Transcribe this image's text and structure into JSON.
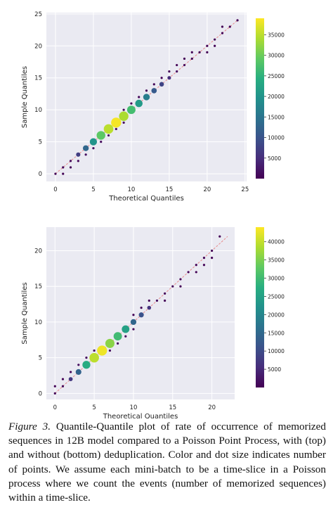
{
  "figures": [
    {
      "chart_data": {
        "type": "scatter",
        "title": "",
        "xlabel": "Theoretical Quantiles",
        "ylabel": "Sample Quantiles",
        "xlim": [
          -1.2,
          25.2
        ],
        "ylim": [
          -1.2,
          25.2
        ],
        "xticks": [
          "0",
          "5",
          "10",
          "15",
          "20",
          "25"
        ],
        "yticks": [
          "0",
          "5",
          "10",
          "15",
          "20",
          "25"
        ],
        "grid": true,
        "reference_line": {
          "from": [
            0,
            0
          ],
          "to": [
            24,
            24
          ],
          "color": "#e88a8a"
        },
        "colorbar": {
          "cmap": "viridis",
          "min": 0,
          "max": 39000,
          "ticks": [
            "5000",
            "10000",
            "15000",
            "20000",
            "25000",
            "30000",
            "35000"
          ]
        },
        "points": [
          {
            "x": 0,
            "y": 0,
            "count": 400
          },
          {
            "x": 1,
            "y": 0,
            "count": 300
          },
          {
            "x": 1,
            "y": 1,
            "count": 400
          },
          {
            "x": 2,
            "y": 1,
            "count": 500
          },
          {
            "x": 2,
            "y": 2,
            "count": 1200
          },
          {
            "x": 3,
            "y": 2,
            "count": 1000
          },
          {
            "x": 3,
            "y": 3,
            "count": 7000
          },
          {
            "x": 4,
            "y": 3,
            "count": 1500
          },
          {
            "x": 4,
            "y": 4,
            "count": 13000
          },
          {
            "x": 5,
            "y": 4,
            "count": 1500
          },
          {
            "x": 5,
            "y": 5,
            "count": 20000
          },
          {
            "x": 6,
            "y": 5,
            "count": 1200
          },
          {
            "x": 6,
            "y": 6,
            "count": 29000
          },
          {
            "x": 7,
            "y": 6,
            "count": 1500
          },
          {
            "x": 7,
            "y": 7,
            "count": 35000
          },
          {
            "x": 8,
            "y": 7,
            "count": 1200
          },
          {
            "x": 8,
            "y": 8,
            "count": 38500
          },
          {
            "x": 9,
            "y": 8,
            "count": 1000
          },
          {
            "x": 9,
            "y": 9,
            "count": 34000
          },
          {
            "x": 9,
            "y": 10,
            "count": 600
          },
          {
            "x": 10,
            "y": 10,
            "count": 27000
          },
          {
            "x": 10,
            "y": 11,
            "count": 500
          },
          {
            "x": 11,
            "y": 11,
            "count": 21000
          },
          {
            "x": 11,
            "y": 12,
            "count": 500
          },
          {
            "x": 12,
            "y": 12,
            "count": 16500
          },
          {
            "x": 12,
            "y": 13,
            "count": 500
          },
          {
            "x": 13,
            "y": 13,
            "count": 11000
          },
          {
            "x": 13,
            "y": 14,
            "count": 500
          },
          {
            "x": 14,
            "y": 14,
            "count": 8000
          },
          {
            "x": 14,
            "y": 15,
            "count": 400
          },
          {
            "x": 15,
            "y": 15,
            "count": 5000
          },
          {
            "x": 15,
            "y": 16,
            "count": 400
          },
          {
            "x": 16,
            "y": 16,
            "count": 1500
          },
          {
            "x": 16,
            "y": 17,
            "count": 300
          },
          {
            "x": 17,
            "y": 17,
            "count": 800
          },
          {
            "x": 17,
            "y": 18,
            "count": 300
          },
          {
            "x": 18,
            "y": 18,
            "count": 400
          },
          {
            "x": 18,
            "y": 19,
            "count": 300
          },
          {
            "x": 19,
            "y": 19,
            "count": 300
          },
          {
            "x": 20,
            "y": 19,
            "count": 300
          },
          {
            "x": 20,
            "y": 20,
            "count": 300
          },
          {
            "x": 21,
            "y": 20,
            "count": 300
          },
          {
            "x": 21,
            "y": 21,
            "count": 300
          },
          {
            "x": 22,
            "y": 22,
            "count": 300
          },
          {
            "x": 22,
            "y": 23,
            "count": 300
          },
          {
            "x": 23,
            "y": 23,
            "count": 300
          },
          {
            "x": 24,
            "y": 24,
            "count": 300
          }
        ]
      }
    },
    {
      "chart_data": {
        "type": "scatter",
        "title": "",
        "xlabel": "Theoretical Quantiles",
        "ylabel": "Sample Quantiles",
        "xlim": [
          -1.1,
          22.9
        ],
        "ylim": [
          -0.85,
          23.3
        ],
        "xticks": [
          "0",
          "5",
          "10",
          "15",
          "20"
        ],
        "yticks": [
          "0",
          "5",
          "10",
          "15",
          "20"
        ],
        "grid": true,
        "reference_line": {
          "from": [
            0,
            0
          ],
          "to": [
            22,
            22
          ],
          "color": "#e88a8a"
        },
        "colorbar": {
          "cmap": "viridis",
          "min": 0,
          "max": 44000,
          "ticks": [
            "5000",
            "10000",
            "15000",
            "20000",
            "25000",
            "30000",
            "35000",
            "40000"
          ]
        },
        "points": [
          {
            "x": 0,
            "y": 0,
            "count": 400
          },
          {
            "x": 0,
            "y": 1,
            "count": 300
          },
          {
            "x": 1,
            "y": 1,
            "count": 400
          },
          {
            "x": 1,
            "y": 2,
            "count": 300
          },
          {
            "x": 2,
            "y": 2,
            "count": 7000
          },
          {
            "x": 2,
            "y": 3,
            "count": 800
          },
          {
            "x": 3,
            "y": 3,
            "count": 14000
          },
          {
            "x": 3,
            "y": 4,
            "count": 1500
          },
          {
            "x": 4,
            "y": 4,
            "count": 27000
          },
          {
            "x": 4,
            "y": 5,
            "count": 1500
          },
          {
            "x": 5,
            "y": 5,
            "count": 39500
          },
          {
            "x": 5,
            "y": 6,
            "count": 1500
          },
          {
            "x": 6,
            "y": 6,
            "count": 43000
          },
          {
            "x": 7,
            "y": 6,
            "count": 1500
          },
          {
            "x": 7,
            "y": 7,
            "count": 36000
          },
          {
            "x": 8,
            "y": 7,
            "count": 1200
          },
          {
            "x": 8,
            "y": 8,
            "count": 30000
          },
          {
            "x": 9,
            "y": 8,
            "count": 1000
          },
          {
            "x": 9,
            "y": 9,
            "count": 25000
          },
          {
            "x": 10,
            "y": 9,
            "count": 800
          },
          {
            "x": 10,
            "y": 10,
            "count": 14500
          },
          {
            "x": 10,
            "y": 11,
            "count": 500
          },
          {
            "x": 11,
            "y": 11,
            "count": 11000
          },
          {
            "x": 11,
            "y": 12,
            "count": 500
          },
          {
            "x": 12,
            "y": 12,
            "count": 6500
          },
          {
            "x": 12,
            "y": 13,
            "count": 400
          },
          {
            "x": 13,
            "y": 13,
            "count": 1500
          },
          {
            "x": 14,
            "y": 13,
            "count": 400
          },
          {
            "x": 14,
            "y": 14,
            "count": 800
          },
          {
            "x": 15,
            "y": 15,
            "count": 400
          },
          {
            "x": 16,
            "y": 15,
            "count": 300
          },
          {
            "x": 16,
            "y": 16,
            "count": 300
          },
          {
            "x": 17,
            "y": 17,
            "count": 300
          },
          {
            "x": 18,
            "y": 17,
            "count": 300
          },
          {
            "x": 18,
            "y": 18,
            "count": 300
          },
          {
            "x": 19,
            "y": 18,
            "count": 300
          },
          {
            "x": 19,
            "y": 19,
            "count": 300
          },
          {
            "x": 20,
            "y": 19,
            "count": 300
          },
          {
            "x": 20,
            "y": 20,
            "count": 300
          },
          {
            "x": 21,
            "y": 22,
            "count": 300
          }
        ]
      }
    }
  ],
  "caption": {
    "label": "Figure 3.",
    "text": " Quantile-Quantile plot of rate of occurrence of memorized sequences in 12B model compared to a Poisson Point Process, with (top) and without (bottom) deduplication. Color and dot size indicates number of points. We assume each mini-batch to be a time-slice in a Poisson process where we count the events (number of memorized sequences) within a time-slice."
  }
}
